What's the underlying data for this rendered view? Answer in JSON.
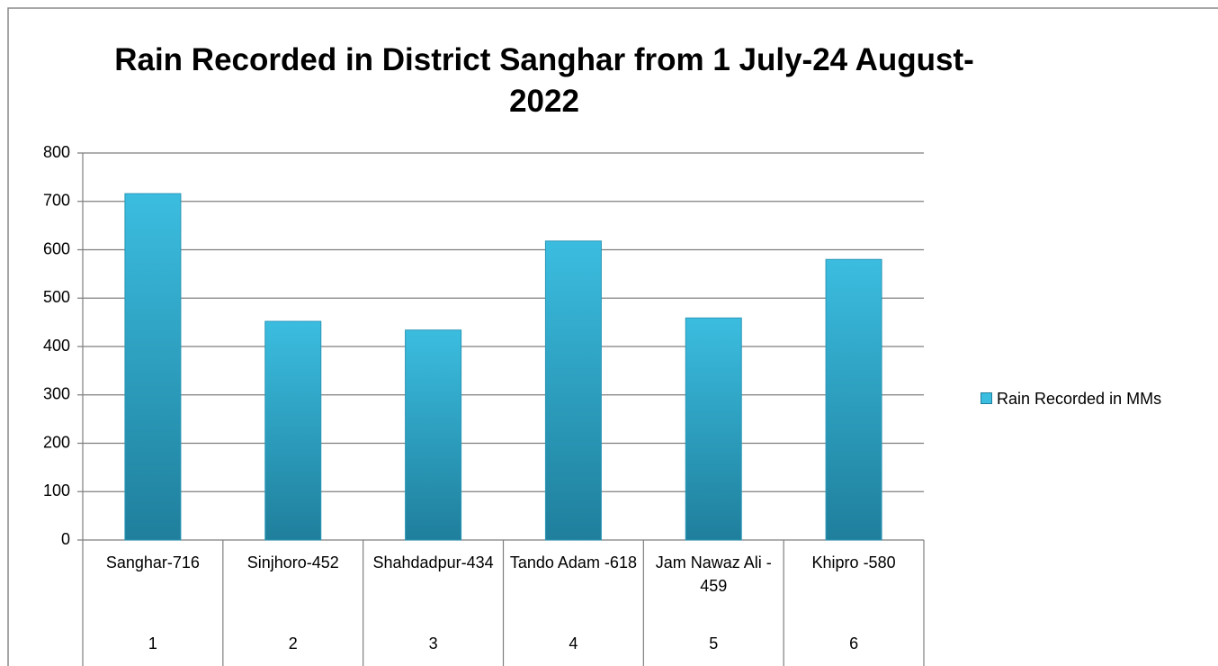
{
  "chart_data": {
    "type": "bar",
    "title": "Rain Recorded in District Sanghar from 1 July-24 August-2022",
    "categories": [
      "Sanghar-716",
      "Sinjhoro-452",
      "Shahdadpur-434",
      "Tando Adam -618",
      "Jam Nawaz Ali - 459",
      "Khipro -580"
    ],
    "category_groups": [
      1,
      2,
      3,
      4,
      5,
      6
    ],
    "series": [
      {
        "name": "Rain Recorded in MMs",
        "color": "#3bbde0",
        "values": [
          716,
          452,
          434,
          618,
          459,
          580
        ]
      }
    ],
    "ylim": [
      0,
      800
    ],
    "yticks": [
      0,
      100,
      200,
      300,
      400,
      500,
      600,
      700,
      800
    ],
    "grid": true,
    "legend": "right"
  }
}
